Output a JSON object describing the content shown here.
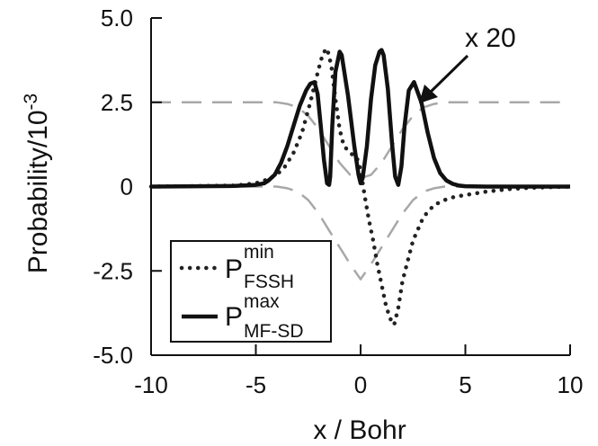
{
  "chart_data": {
    "type": "line",
    "xlabel": "x / Bohr",
    "ylabel": "Probability/10",
    "ylabel_exponent": "-3",
    "xlim": [
      -10,
      10
    ],
    "ylim": [
      -5,
      5
    ],
    "x_ticks": [
      -10,
      -5,
      0,
      5,
      10
    ],
    "x_tick_labels": [
      "-10",
      "-5",
      "0",
      "5",
      "10"
    ],
    "y_ticks": [
      -5,
      -2.5,
      0,
      2.5,
      5
    ],
    "y_tick_labels": [
      "-5.0",
      "-2.5",
      "0",
      "2.5",
      "5.0"
    ],
    "grid": false,
    "legend_position": "bottom-left",
    "annotation": "x 20",
    "series": [
      {
        "name": "P_FSSH^min",
        "legend_main": "P",
        "legend_sup": "min",
        "legend_sub": "FSSH",
        "style": "dotted",
        "color": "#222222",
        "x": [
          -10,
          -6,
          -5,
          -4.5,
          -4,
          -3.6,
          -3.2,
          -2.8,
          -2.4,
          -2.0,
          -1.8,
          -1.6,
          -1.4,
          -1.2,
          -1.0,
          -0.8,
          -0.4,
          -0.2,
          0.0,
          0.2,
          0.4,
          0.6,
          0.8,
          1.0,
          1.2,
          1.4,
          1.6,
          1.8,
          2.0,
          2.5,
          3.0,
          3.5,
          4.0,
          4.5,
          5.0,
          6.0,
          7.0,
          8.0,
          9.0,
          10.0
        ],
        "y": [
          0.0,
          0.03,
          0.1,
          0.2,
          0.35,
          0.6,
          1.0,
          1.6,
          2.5,
          3.5,
          3.95,
          4.1,
          3.6,
          2.6,
          1.7,
          1.2,
          0.95,
          0.9,
          0.5,
          -0.3,
          -1.0,
          -1.6,
          -2.3,
          -2.9,
          -3.5,
          -3.9,
          -4.1,
          -3.6,
          -2.8,
          -1.6,
          -0.9,
          -0.55,
          -0.4,
          -0.3,
          -0.25,
          -0.15,
          -0.08,
          -0.04,
          -0.02,
          0.0
        ]
      },
      {
        "name": "P_MF-SD^max",
        "legend_main": "P",
        "legend_sup": "max",
        "legend_sub": "MF-SD",
        "style": "solid",
        "color": "#111111",
        "x": [
          -10,
          -6,
          -5,
          -4.6,
          -4.4,
          -4.1,
          -3.8,
          -3.5,
          -3.2,
          -2.9,
          -2.6,
          -2.4,
          -2.2,
          -2.05,
          -1.9,
          -1.75,
          -1.6,
          -1.5,
          -1.45,
          -1.35,
          -1.2,
          -1.0,
          -0.9,
          -0.6,
          -0.3,
          -0.1,
          0.0,
          0.1,
          0.3,
          0.5,
          0.7,
          0.9,
          1.0,
          1.1,
          1.3,
          1.5,
          1.65,
          1.8,
          1.95,
          2.1,
          2.3,
          2.55,
          2.9,
          3.2,
          3.5,
          3.8,
          4.1,
          4.4,
          4.7,
          5.0,
          6.0,
          10.0
        ],
        "y": [
          0.0,
          0.02,
          0.05,
          0.1,
          0.18,
          0.35,
          0.7,
          1.2,
          1.8,
          2.4,
          2.85,
          3.05,
          3.1,
          2.75,
          1.8,
          0.8,
          0.1,
          0.05,
          0.3,
          1.8,
          3.4,
          4.0,
          3.9,
          2.7,
          1.2,
          0.35,
          0.1,
          0.25,
          1.2,
          2.6,
          3.6,
          4.0,
          4.05,
          3.9,
          2.9,
          1.3,
          0.3,
          0.05,
          0.6,
          1.8,
          2.85,
          3.1,
          2.5,
          1.6,
          0.85,
          0.4,
          0.18,
          0.08,
          0.03,
          0.01,
          0.0,
          0.0
        ]
      },
      {
        "name": "upper potential (scaled)",
        "style": "dashed",
        "color": "#a8a8a8",
        "x": [
          -10,
          -6,
          -5,
          -4,
          -3.5,
          -3,
          -2.5,
          -2,
          -1.5,
          -1,
          -0.5,
          0,
          0.5,
          1,
          1.5,
          2,
          2.5,
          3,
          3.5,
          4,
          5,
          6,
          10
        ],
        "y": [
          2.5,
          2.5,
          2.5,
          2.5,
          2.45,
          2.35,
          2.1,
          1.7,
          1.2,
          0.7,
          0.35,
          0.25,
          0.35,
          0.7,
          1.2,
          1.7,
          2.1,
          2.35,
          2.45,
          2.5,
          2.5,
          2.5,
          2.5
        ]
      },
      {
        "name": "lower potential (scaled)",
        "style": "dashed",
        "color": "#a8a8a8",
        "x": [
          -10,
          -6,
          -5,
          -4,
          -3.5,
          -3,
          -2.5,
          -2,
          -1.5,
          -1,
          -0.5,
          0,
          0.5,
          1,
          1.5,
          2,
          2.5,
          3,
          3.5,
          4,
          5,
          6,
          10
        ],
        "y": [
          0.0,
          0.0,
          0.0,
          0.0,
          -0.05,
          -0.15,
          -0.4,
          -0.8,
          -1.3,
          -1.8,
          -2.3,
          -2.75,
          -2.3,
          -1.8,
          -1.3,
          -0.8,
          -0.4,
          -0.15,
          -0.05,
          0.0,
          0.0,
          0.0,
          0.0
        ]
      }
    ]
  }
}
